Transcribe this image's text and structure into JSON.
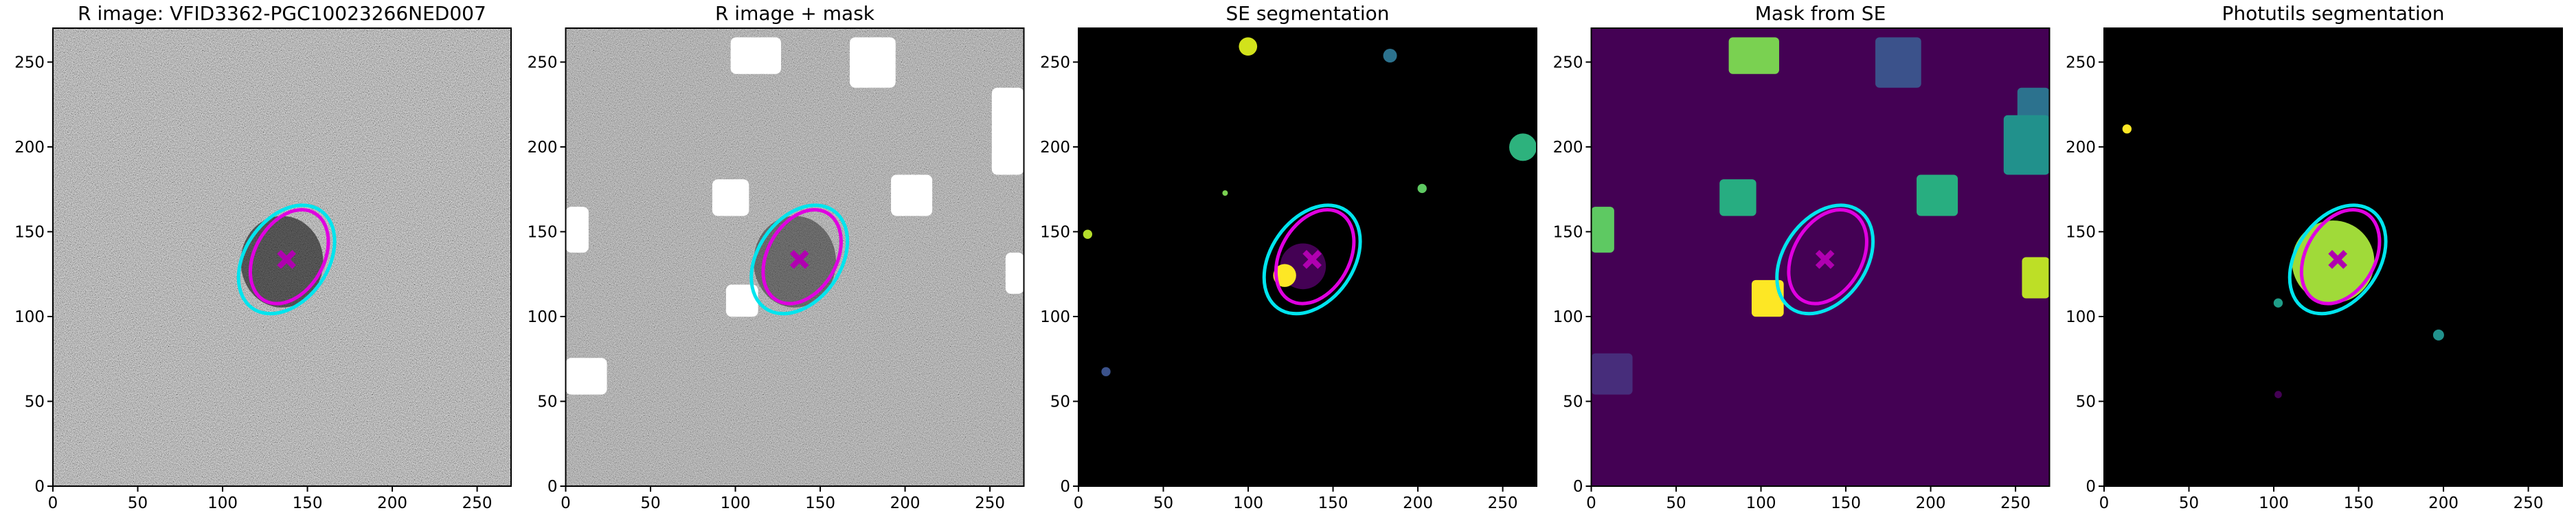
{
  "chart_data": [
    {
      "type": "image",
      "title": "R image: VFID3362-PGC10023266NED007",
      "colormap": "gray",
      "background": "#808080",
      "xlim": [
        0,
        270
      ],
      "ylim": [
        0,
        270
      ],
      "xticks": [
        0,
        50,
        100,
        150,
        200,
        250
      ],
      "yticks": [
        0,
        50,
        100,
        150,
        200,
        250
      ]
    },
    {
      "type": "image",
      "title": "R image + mask",
      "colormap": "gray",
      "background": "#909090",
      "xlim": [
        0,
        270
      ],
      "ylim": [
        0,
        270
      ],
      "xticks": [
        0,
        50,
        100,
        150,
        200,
        250
      ],
      "yticks": [
        0,
        50,
        100,
        150,
        200,
        250
      ]
    },
    {
      "type": "image",
      "title": "SE segmentation",
      "colormap": "viridis",
      "background": "#000000",
      "xlim": [
        0,
        270
      ],
      "ylim": [
        0,
        270
      ],
      "xticks": [
        0,
        50,
        100,
        150,
        200,
        250
      ],
      "yticks": [
        0,
        50,
        100,
        150,
        200,
        250
      ]
    },
    {
      "type": "image",
      "title": "Mask from SE",
      "colormap": "viridis",
      "background": "#440154",
      "xlim": [
        0,
        270
      ],
      "ylim": [
        0,
        270
      ],
      "xticks": [
        0,
        50,
        100,
        150,
        200,
        250
      ],
      "yticks": [
        0,
        50,
        100,
        150,
        200,
        250
      ]
    },
    {
      "type": "image",
      "title": "Photutils segmentation",
      "colormap": "viridis",
      "background": "#000000",
      "xlim": [
        0,
        270
      ],
      "ylim": [
        0,
        270
      ],
      "xticks": [
        0,
        50,
        100,
        150,
        200,
        250
      ],
      "yticks": [
        0,
        50,
        100,
        150,
        200,
        250
      ]
    }
  ]
}
